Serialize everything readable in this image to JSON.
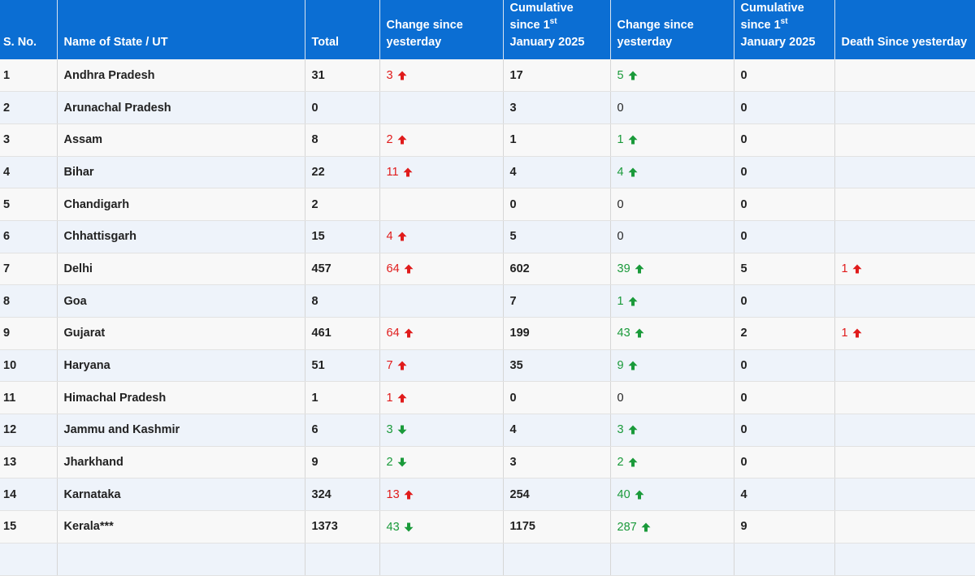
{
  "headers": {
    "sno": "S. No.",
    "state": "Name of State / UT",
    "total": "Total",
    "change1": "Change since yesterday",
    "cum1_pre": "Cumulative since 1",
    "cum1_sup": "st",
    "cum1_post": "January 2025",
    "change2": "Change since yesterday",
    "cum2_pre": "Cumulative since 1",
    "cum2_sup": "st",
    "cum2_post": "January 2025",
    "death": "Death Since yesterday"
  },
  "colors": {
    "header_bg": "#0b6ed3",
    "up_red": "#e01b1b",
    "green": "#1a9a3a"
  },
  "rows": [
    {
      "sno": "1",
      "state": "Andhra Pradesh",
      "total": "31",
      "c1": "3",
      "c1dir": "up-red",
      "cum1": "17",
      "c2": "5",
      "c2dir": "up-green",
      "cum2": "0",
      "death": "",
      "ddir": ""
    },
    {
      "sno": "2",
      "state": "Arunachal Pradesh",
      "total": "0",
      "c1": "",
      "c1dir": "",
      "cum1": "3",
      "c2": "0",
      "c2dir": "",
      "cum2": "0",
      "death": "",
      "ddir": ""
    },
    {
      "sno": "3",
      "state": "Assam",
      "total": "8",
      "c1": "2",
      "c1dir": "up-red",
      "cum1": "1",
      "c2": "1",
      "c2dir": "up-green",
      "cum2": "0",
      "death": "",
      "ddir": ""
    },
    {
      "sno": "4",
      "state": "Bihar",
      "total": "22",
      "c1": "11",
      "c1dir": "up-red",
      "cum1": "4",
      "c2": "4",
      "c2dir": "up-green",
      "cum2": "0",
      "death": "",
      "ddir": ""
    },
    {
      "sno": "5",
      "state": "Chandigarh",
      "total": "2",
      "c1": "",
      "c1dir": "",
      "cum1": "0",
      "c2": "0",
      "c2dir": "",
      "cum2": "0",
      "death": "",
      "ddir": ""
    },
    {
      "sno": "6",
      "state": "Chhattisgarh",
      "total": "15",
      "c1": "4",
      "c1dir": "up-red",
      "cum1": "5",
      "c2": "0",
      "c2dir": "",
      "cum2": "0",
      "death": "",
      "ddir": ""
    },
    {
      "sno": "7",
      "state": "Delhi",
      "total": "457",
      "c1": "64",
      "c1dir": "up-red",
      "cum1": "602",
      "c2": "39",
      "c2dir": "up-green",
      "cum2": "5",
      "death": "1",
      "ddir": "up-red"
    },
    {
      "sno": "8",
      "state": "Goa",
      "total": "8",
      "c1": "",
      "c1dir": "",
      "cum1": "7",
      "c2": "1",
      "c2dir": "up-green",
      "cum2": "0",
      "death": "",
      "ddir": ""
    },
    {
      "sno": "9",
      "state": "Gujarat",
      "total": "461",
      "c1": "64",
      "c1dir": "up-red",
      "cum1": "199",
      "c2": "43",
      "c2dir": "up-green",
      "cum2": "2",
      "death": "1",
      "ddir": "up-red"
    },
    {
      "sno": "10",
      "state": "Haryana",
      "total": "51",
      "c1": "7",
      "c1dir": "up-red",
      "cum1": "35",
      "c2": "9",
      "c2dir": "up-green",
      "cum2": "0",
      "death": "",
      "ddir": ""
    },
    {
      "sno": "11",
      "state": "Himachal Pradesh",
      "total": "1",
      "c1": "1",
      "c1dir": "up-red",
      "cum1": "0",
      "c2": "0",
      "c2dir": "",
      "cum2": "0",
      "death": "",
      "ddir": ""
    },
    {
      "sno": "12",
      "state": "Jammu and Kashmir",
      "total": "6",
      "c1": "3",
      "c1dir": "down-green",
      "cum1": "4",
      "c2": "3",
      "c2dir": "up-green",
      "cum2": "0",
      "death": "",
      "ddir": ""
    },
    {
      "sno": "13",
      "state": "Jharkhand",
      "total": "9",
      "c1": "2",
      "c1dir": "down-green",
      "cum1": "3",
      "c2": "2",
      "c2dir": "up-green",
      "cum2": "0",
      "death": "",
      "ddir": ""
    },
    {
      "sno": "14",
      "state": "Karnataka",
      "total": "324",
      "c1": "13",
      "c1dir": "up-red",
      "cum1": "254",
      "c2": "40",
      "c2dir": "up-green",
      "cum2": "4",
      "death": "",
      "ddir": ""
    },
    {
      "sno": "15",
      "state": "Kerala***",
      "total": "1373",
      "c1": "43",
      "c1dir": "down-green",
      "cum1": "1175",
      "c2": "287",
      "c2dir": "up-green",
      "cum2": "9",
      "death": "",
      "ddir": ""
    },
    {
      "sno": "",
      "state": "",
      "total": "",
      "c1": "",
      "c1dir": "",
      "cum1": "",
      "c2": "",
      "c2dir": "",
      "cum2": "",
      "death": "",
      "ddir": ""
    }
  ]
}
